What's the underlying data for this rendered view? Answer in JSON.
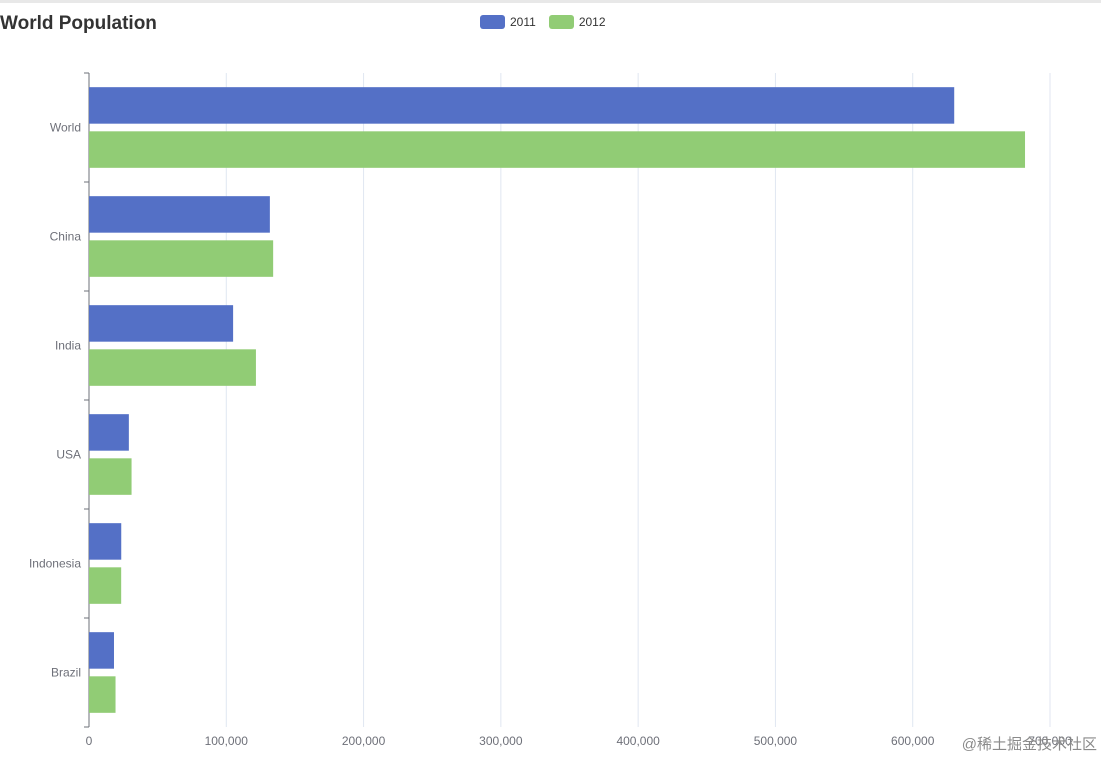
{
  "chart_data": {
    "type": "bar",
    "orientation": "horizontal",
    "title": "World Population",
    "categories": [
      "Brazil",
      "Indonesia",
      "USA",
      "India",
      "China",
      "World"
    ],
    "series": [
      {
        "name": "2011",
        "color": "#5470c6",
        "values": [
          18203,
          23489,
          29034,
          104970,
          131744,
          630230
        ]
      },
      {
        "name": "2012",
        "color": "#91cc75",
        "values": [
          19325,
          23438,
          31000,
          121594,
          134141,
          681807
        ]
      }
    ],
    "xlim": [
      0,
      700000
    ],
    "x_ticks": [
      "0",
      "100,000",
      "200,000",
      "300,000",
      "400,000",
      "500,000",
      "600,000",
      "700,000"
    ],
    "grid": true,
    "legend_position": "top-center"
  },
  "watermark": "@稀土掘金技术社区"
}
